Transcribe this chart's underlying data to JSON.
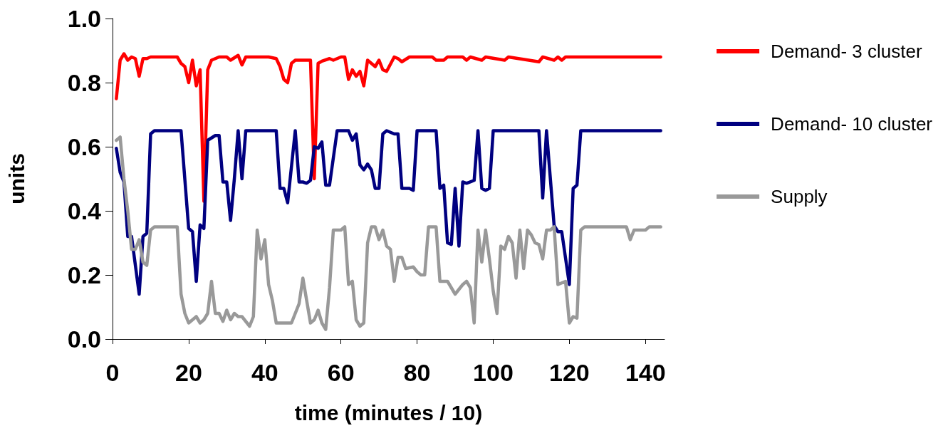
{
  "chart_data": {
    "type": "line",
    "xlabel": "time (minutes / 10)",
    "ylabel": "units",
    "xlim": [
      0,
      145
    ],
    "xticks": [
      0,
      20,
      40,
      60,
      80,
      100,
      120,
      140
    ],
    "ylim": [
      0,
      1
    ],
    "yticks": [
      {
        "value": 0,
        "label": "0.0"
      },
      0.2,
      0.4,
      0.6,
      0.8,
      {
        "value": 1,
        "label": "1.0"
      }
    ],
    "grid": false,
    "legend": "right",
    "marker": "none",
    "line_style": "solid",
    "series": [
      {
        "name": "Demand- 3 cluster",
        "color": "#ff0000",
        "x": [
          1,
          2,
          3,
          4,
          5,
          6,
          7,
          8,
          9,
          10,
          17,
          18,
          19,
          20,
          21,
          22,
          23,
          24,
          25,
          26,
          28,
          30,
          31,
          33,
          34,
          35,
          41,
          43,
          44,
          45,
          46,
          47,
          48,
          52,
          53,
          54,
          55,
          57,
          58,
          60,
          61,
          62,
          63,
          64,
          65,
          66,
          67,
          69,
          70,
          71,
          72,
          74,
          75,
          76,
          78,
          84,
          85,
          87,
          88,
          92,
          93,
          94,
          97,
          98,
          103,
          104,
          112,
          113,
          116,
          117,
          118,
          119,
          144
        ],
        "values": [
          0.75,
          0.87,
          0.89,
          0.87,
          0.88,
          0.875,
          0.82,
          0.875,
          0.875,
          0.88,
          0.88,
          0.86,
          0.85,
          0.8,
          0.87,
          0.79,
          0.84,
          0.43,
          0.84,
          0.87,
          0.88,
          0.88,
          0.87,
          0.885,
          0.855,
          0.88,
          0.88,
          0.875,
          0.85,
          0.81,
          0.8,
          0.86,
          0.87,
          0.87,
          0.5,
          0.86,
          0.867,
          0.875,
          0.87,
          0.88,
          0.88,
          0.81,
          0.84,
          0.82,
          0.835,
          0.79,
          0.87,
          0.85,
          0.87,
          0.84,
          0.835,
          0.88,
          0.875,
          0.865,
          0.88,
          0.88,
          0.87,
          0.87,
          0.88,
          0.88,
          0.87,
          0.88,
          0.87,
          0.88,
          0.87,
          0.88,
          0.865,
          0.88,
          0.87,
          0.88,
          0.87,
          0.88,
          0.88
        ]
      },
      {
        "name": "Demand- 10 cluster",
        "color": "#000080",
        "x": [
          1,
          2,
          3,
          4,
          5,
          7,
          8,
          9,
          10,
          11,
          18,
          20,
          21,
          22,
          23,
          24,
          25,
          27,
          28,
          29,
          30,
          31,
          32,
          33,
          34,
          35,
          43,
          44,
          45,
          46,
          48,
          49,
          50,
          51,
          52,
          53,
          54,
          55,
          56,
          57,
          59,
          62,
          63,
          64,
          65,
          66,
          67,
          68,
          69,
          70,
          71,
          72,
          74,
          75,
          76,
          78,
          79,
          80,
          85,
          86,
          87,
          88,
          89,
          90,
          91,
          92,
          93,
          95,
          96,
          97,
          98,
          99,
          100,
          112,
          113,
          114,
          116,
          117,
          118,
          120,
          121,
          122,
          123,
          144
        ],
        "values": [
          0.595,
          0.52,
          0.49,
          0.32,
          0.32,
          0.14,
          0.32,
          0.33,
          0.64,
          0.65,
          0.65,
          0.345,
          0.335,
          0.18,
          0.356,
          0.345,
          0.62,
          0.635,
          0.635,
          0.49,
          0.49,
          0.37,
          0.5,
          0.65,
          0.5,
          0.65,
          0.65,
          0.47,
          0.47,
          0.425,
          0.65,
          0.49,
          0.49,
          0.486,
          0.495,
          0.6,
          0.595,
          0.615,
          0.48,
          0.48,
          0.65,
          0.65,
          0.62,
          0.64,
          0.543,
          0.528,
          0.546,
          0.528,
          0.47,
          0.47,
          0.64,
          0.65,
          0.64,
          0.64,
          0.47,
          0.47,
          0.464,
          0.65,
          0.65,
          0.47,
          0.48,
          0.3,
          0.295,
          0.47,
          0.29,
          0.49,
          0.486,
          0.495,
          0.65,
          0.47,
          0.464,
          0.47,
          0.65,
          0.65,
          0.44,
          0.65,
          0.354,
          0.335,
          0.335,
          0.17,
          0.47,
          0.48,
          0.65,
          0.65
        ]
      },
      {
        "name": "Supply",
        "color": "#999999",
        "x": [
          1,
          2,
          3,
          4,
          5,
          6,
          7,
          8,
          9,
          10,
          11,
          17,
          18,
          19,
          20,
          22,
          23,
          24,
          25,
          26,
          27,
          28,
          29,
          30,
          31,
          32,
          33,
          34,
          36,
          37,
          38,
          39,
          40,
          41,
          42,
          43,
          44,
          46,
          47,
          49,
          50,
          51,
          52,
          53,
          54,
          55,
          56,
          57,
          58,
          60,
          61,
          62,
          63,
          64,
          65,
          66,
          67,
          68,
          69,
          70,
          71,
          72,
          73,
          74,
          75,
          76,
          77,
          79,
          80,
          81,
          82,
          83,
          85,
          86,
          88,
          90,
          92,
          93,
          94,
          95,
          96,
          97,
          98,
          99,
          100,
          101,
          102,
          103,
          104,
          105,
          106,
          107,
          108,
          109,
          110,
          111,
          112,
          113,
          114,
          115,
          116,
          117,
          119,
          120,
          121,
          122,
          123,
          124,
          135,
          136,
          137,
          140,
          141,
          144
        ],
        "values": [
          0.62,
          0.63,
          0.5,
          0.4,
          0.28,
          0.28,
          0.31,
          0.24,
          0.23,
          0.34,
          0.35,
          0.35,
          0.14,
          0.08,
          0.05,
          0.07,
          0.05,
          0.06,
          0.08,
          0.18,
          0.08,
          0.08,
          0.055,
          0.09,
          0.06,
          0.08,
          0.07,
          0.07,
          0.04,
          0.07,
          0.34,
          0.25,
          0.31,
          0.17,
          0.12,
          0.05,
          0.05,
          0.05,
          0.05,
          0.11,
          0.19,
          0.12,
          0.05,
          0.06,
          0.09,
          0.05,
          0.03,
          0.16,
          0.34,
          0.34,
          0.35,
          0.17,
          0.18,
          0.06,
          0.04,
          0.05,
          0.3,
          0.35,
          0.35,
          0.31,
          0.34,
          0.29,
          0.28,
          0.18,
          0.255,
          0.255,
          0.22,
          0.225,
          0.21,
          0.2,
          0.2,
          0.35,
          0.35,
          0.18,
          0.18,
          0.14,
          0.17,
          0.18,
          0.16,
          0.05,
          0.34,
          0.24,
          0.34,
          0.25,
          0.15,
          0.08,
          0.29,
          0.28,
          0.32,
          0.3,
          0.19,
          0.34,
          0.22,
          0.34,
          0.325,
          0.3,
          0.295,
          0.25,
          0.34,
          0.34,
          0.35,
          0.17,
          0.18,
          0.05,
          0.07,
          0.065,
          0.34,
          0.35,
          0.35,
          0.31,
          0.34,
          0.34,
          0.35,
          0.35
        ]
      }
    ]
  }
}
